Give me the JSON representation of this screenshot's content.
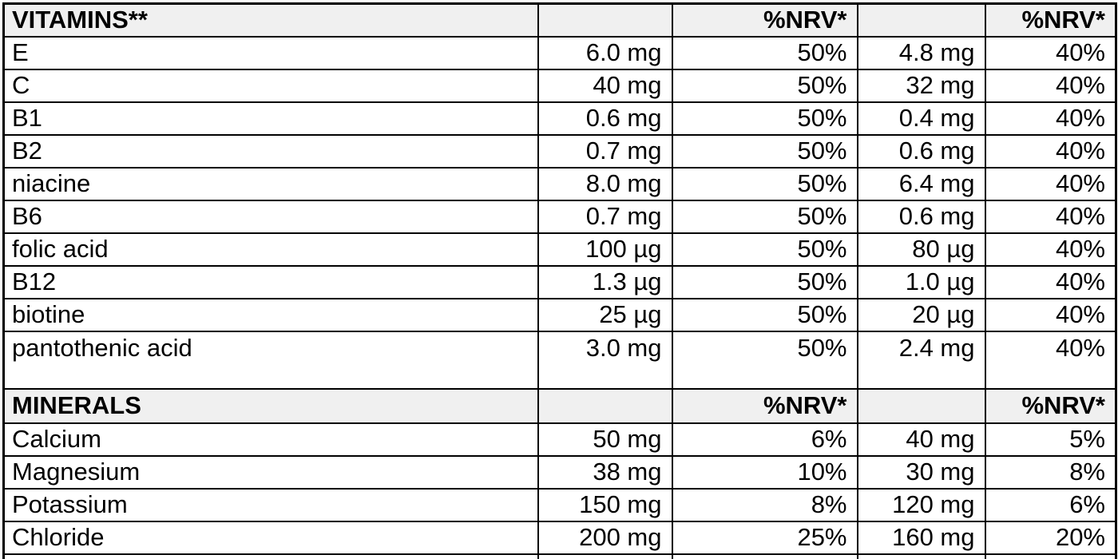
{
  "colors": {
    "header_bg": "#f0f0f0",
    "border": "#000000",
    "text": "#000000",
    "background": "#ffffff"
  },
  "table": {
    "vitamins_header": {
      "title": "VITAMINS**",
      "amount1": "",
      "nrv1": "%NRV*",
      "amount2": "",
      "nrv2": "%NRV*"
    },
    "vitamins": [
      {
        "name": "E",
        "amount1": "6.0 mg",
        "nrv1": "50%",
        "amount2": "4.8 mg",
        "nrv2": "40%"
      },
      {
        "name": "C",
        "amount1": "40 mg",
        "nrv1": "50%",
        "amount2": "32 mg",
        "nrv2": "40%"
      },
      {
        "name": "B1",
        "amount1": "0.6 mg",
        "nrv1": "50%",
        "amount2": "0.4 mg",
        "nrv2": "40%"
      },
      {
        "name": "B2",
        "amount1": "0.7 mg",
        "nrv1": "50%",
        "amount2": "0.6 mg",
        "nrv2": "40%"
      },
      {
        "name": "niacine",
        "amount1": "8.0 mg",
        "nrv1": "50%",
        "amount2": "6.4 mg",
        "nrv2": "40%"
      },
      {
        "name": "B6",
        "amount1": "0.7 mg",
        "nrv1": "50%",
        "amount2": "0.6 mg",
        "nrv2": "40%"
      },
      {
        "name": "folic acid",
        "amount1": "100 µg",
        "nrv1": "50%",
        "amount2": "80 µg",
        "nrv2": "40%"
      },
      {
        "name": "B12",
        "amount1": "1.3 µg",
        "nrv1": "50%",
        "amount2": "1.0 µg",
        "nrv2": "40%"
      },
      {
        "name": "biotine",
        "amount1": "25 µg",
        "nrv1": "50%",
        "amount2": "20 µg",
        "nrv2": "40%"
      },
      {
        "name": "pantothenic acid",
        "amount1": "3.0 mg",
        "nrv1": "50%",
        "amount2": "2.4 mg",
        "nrv2": "40%"
      }
    ],
    "minerals_header": {
      "title": "MINERALS",
      "amount1": "",
      "nrv1": "%NRV*",
      "amount2": "",
      "nrv2": "%NRV*"
    },
    "minerals": [
      {
        "name": "Calcium",
        "amount1": "50 mg",
        "nrv1": "6%",
        "amount2": "40 mg",
        "nrv2": "5%"
      },
      {
        "name": "Magnesium",
        "amount1": "38 mg",
        "nrv1": "10%",
        "amount2": "30 mg",
        "nrv2": "8%"
      },
      {
        "name": "Potassium",
        "amount1": "150 mg",
        "nrv1": "8%",
        "amount2": "120 mg",
        "nrv2": "6%"
      },
      {
        "name": "Chloride",
        "amount1": "200 mg",
        "nrv1": "25%",
        "amount2": "160 mg",
        "nrv2": "20%"
      }
    ]
  }
}
